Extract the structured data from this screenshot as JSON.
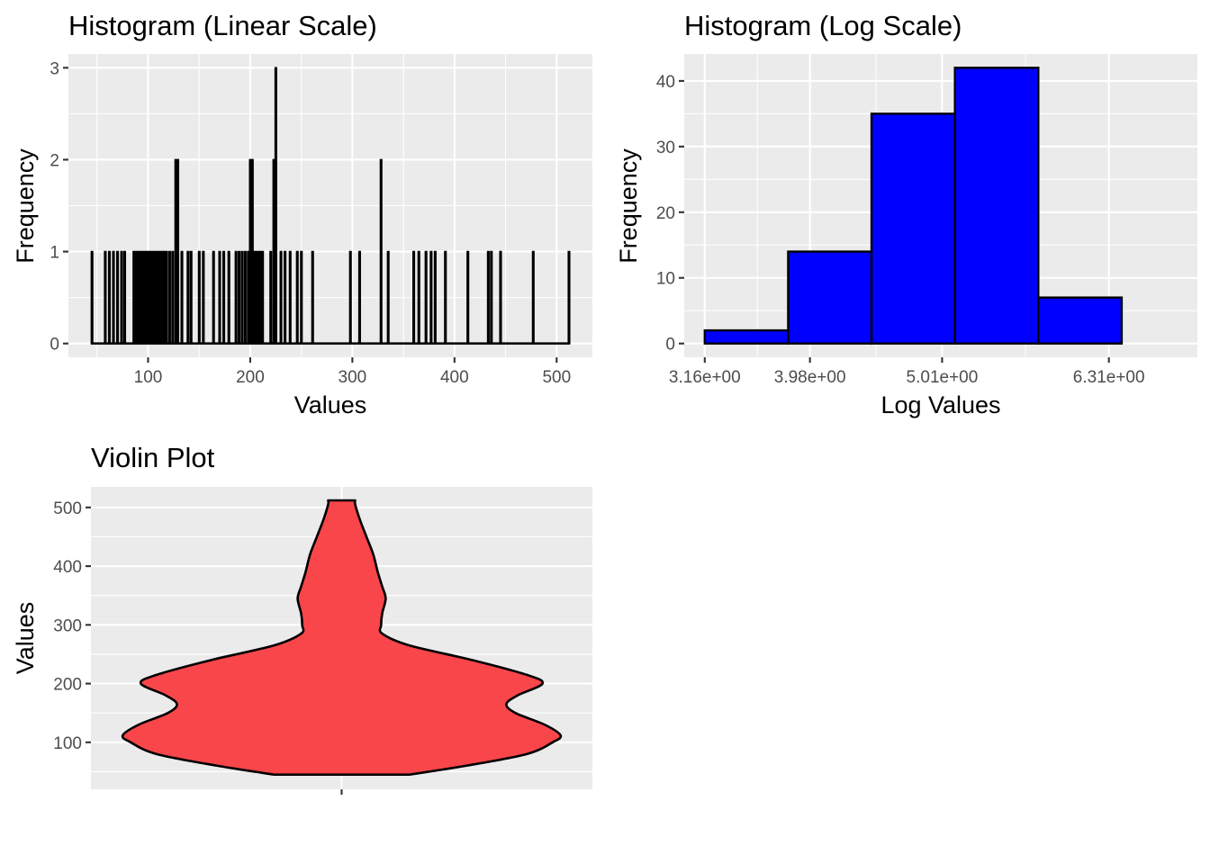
{
  "chart_data": [
    {
      "type": "bar",
      "title": "Histogram (Linear Scale)",
      "xlabel": "Values",
      "ylabel": "Frequency",
      "xlim": [
        22,
        535
      ],
      "ylim": [
        -0.15,
        3.15
      ],
      "x_ticks": [
        100,
        200,
        300,
        400,
        500
      ],
      "x_tick_labels": [
        "100",
        "200",
        "300",
        "400",
        "500"
      ],
      "y_ticks": [
        0,
        1,
        2,
        3
      ],
      "y_tick_labels": [
        "0",
        "1",
        "2",
        "3"
      ],
      "grid": true,
      "bar_fill": "#000000",
      "bar_outline": "#000000",
      "bins": [
        {
          "x": 45,
          "count": 1
        },
        {
          "x": 58,
          "count": 1
        },
        {
          "x": 62,
          "count": 1
        },
        {
          "x": 66,
          "count": 1
        },
        {
          "x": 70,
          "count": 1
        },
        {
          "x": 74,
          "count": 1
        },
        {
          "x": 77,
          "count": 1
        },
        {
          "x": 86,
          "count": 1
        },
        {
          "x": 88,
          "count": 1
        },
        {
          "x": 90,
          "count": 1
        },
        {
          "x": 92,
          "count": 1
        },
        {
          "x": 94,
          "count": 1
        },
        {
          "x": 96,
          "count": 1
        },
        {
          "x": 98,
          "count": 1
        },
        {
          "x": 100,
          "count": 1
        },
        {
          "x": 102,
          "count": 1
        },
        {
          "x": 104,
          "count": 1
        },
        {
          "x": 106,
          "count": 1
        },
        {
          "x": 108,
          "count": 1
        },
        {
          "x": 110,
          "count": 1
        },
        {
          "x": 112,
          "count": 1
        },
        {
          "x": 114,
          "count": 1
        },
        {
          "x": 116,
          "count": 1
        },
        {
          "x": 118,
          "count": 1
        },
        {
          "x": 121,
          "count": 1
        },
        {
          "x": 124,
          "count": 1
        },
        {
          "x": 127,
          "count": 2
        },
        {
          "x": 129,
          "count": 2
        },
        {
          "x": 133,
          "count": 1
        },
        {
          "x": 139,
          "count": 1
        },
        {
          "x": 142,
          "count": 1
        },
        {
          "x": 150,
          "count": 1
        },
        {
          "x": 154,
          "count": 1
        },
        {
          "x": 164,
          "count": 1
        },
        {
          "x": 170,
          "count": 1
        },
        {
          "x": 174,
          "count": 1
        },
        {
          "x": 179,
          "count": 1
        },
        {
          "x": 186,
          "count": 1
        },
        {
          "x": 189,
          "count": 1
        },
        {
          "x": 192,
          "count": 1
        },
        {
          "x": 195,
          "count": 1
        },
        {
          "x": 198,
          "count": 1
        },
        {
          "x": 200,
          "count": 2
        },
        {
          "x": 202,
          "count": 2
        },
        {
          "x": 204,
          "count": 1
        },
        {
          "x": 206,
          "count": 1
        },
        {
          "x": 208,
          "count": 1
        },
        {
          "x": 210,
          "count": 1
        },
        {
          "x": 212,
          "count": 1
        },
        {
          "x": 220,
          "count": 1
        },
        {
          "x": 223,
          "count": 2
        },
        {
          "x": 225,
          "count": 3
        },
        {
          "x": 230,
          "count": 1
        },
        {
          "x": 234,
          "count": 1
        },
        {
          "x": 239,
          "count": 1
        },
        {
          "x": 246,
          "count": 1
        },
        {
          "x": 250,
          "count": 1
        },
        {
          "x": 261,
          "count": 1
        },
        {
          "x": 298,
          "count": 1
        },
        {
          "x": 307,
          "count": 1
        },
        {
          "x": 328,
          "count": 2
        },
        {
          "x": 335,
          "count": 1
        },
        {
          "x": 360,
          "count": 1
        },
        {
          "x": 365,
          "count": 1
        },
        {
          "x": 372,
          "count": 1
        },
        {
          "x": 377,
          "count": 1
        },
        {
          "x": 381,
          "count": 1
        },
        {
          "x": 391,
          "count": 1
        },
        {
          "x": 413,
          "count": 1
        },
        {
          "x": 433,
          "count": 1
        },
        {
          "x": 436,
          "count": 1
        },
        {
          "x": 445,
          "count": 1
        },
        {
          "x": 477,
          "count": 1
        },
        {
          "x": 512,
          "count": 1
        }
      ],
      "x_range": [
        44,
        513
      ]
    },
    {
      "type": "bar",
      "title": "Histogram (Log Scale)",
      "xlabel": "Log Values",
      "ylabel": "Frequency",
      "log_x": true,
      "xlim": [
        3.0,
        7.0
      ],
      "ylim": [
        -2.1,
        44.1
      ],
      "x_ticks": [
        3.16,
        3.98,
        5.01,
        6.31
      ],
      "x_tick_labels": [
        "3.16e+00",
        "3.98e+00",
        "5.01e+00",
        "6.31e+00"
      ],
      "y_ticks": [
        0,
        10,
        20,
        30,
        40
      ],
      "y_tick_labels": [
        "0",
        "10",
        "20",
        "30",
        "40"
      ],
      "grid": true,
      "bar_fill": "#0000ff",
      "bar_outline": "#000000",
      "bins": [
        {
          "x0": 3.16,
          "x1": 3.81,
          "count": 2
        },
        {
          "x0": 3.81,
          "x1": 4.46,
          "count": 14
        },
        {
          "x0": 4.46,
          "x1": 5.11,
          "count": 35
        },
        {
          "x0": 5.11,
          "x1": 5.76,
          "count": 42
        },
        {
          "x0": 5.76,
          "x1": 6.41,
          "count": 7
        }
      ]
    },
    {
      "type": "violin",
      "title": "Violin Plot",
      "xlabel": "",
      "ylabel": "Values",
      "ylim": [
        20,
        535
      ],
      "y_ticks": [
        100,
        200,
        300,
        400,
        500
      ],
      "y_tick_labels": [
        "100",
        "200",
        "300",
        "400",
        "500"
      ],
      "grid": true,
      "fill": "#f8464b",
      "outline": "#000000",
      "y_min": 45,
      "y_max": 512,
      "density": [
        {
          "y": 45,
          "w": 0.3
        },
        {
          "y": 60,
          "w": 0.55
        },
        {
          "y": 80,
          "w": 0.82
        },
        {
          "y": 100,
          "w": 0.935
        },
        {
          "y": 112,
          "w": 0.97
        },
        {
          "y": 130,
          "w": 0.9
        },
        {
          "y": 150,
          "w": 0.77
        },
        {
          "y": 165,
          "w": 0.73
        },
        {
          "y": 180,
          "w": 0.78
        },
        {
          "y": 200,
          "w": 0.89
        },
        {
          "y": 215,
          "w": 0.82
        },
        {
          "y": 240,
          "w": 0.58
        },
        {
          "y": 265,
          "w": 0.3
        },
        {
          "y": 285,
          "w": 0.18
        },
        {
          "y": 300,
          "w": 0.175
        },
        {
          "y": 320,
          "w": 0.18
        },
        {
          "y": 345,
          "w": 0.195
        },
        {
          "y": 365,
          "w": 0.18
        },
        {
          "y": 390,
          "w": 0.16
        },
        {
          "y": 420,
          "w": 0.14
        },
        {
          "y": 450,
          "w": 0.11
        },
        {
          "y": 480,
          "w": 0.08
        },
        {
          "y": 505,
          "w": 0.06
        },
        {
          "y": 512,
          "w": 0.06
        }
      ]
    }
  ]
}
